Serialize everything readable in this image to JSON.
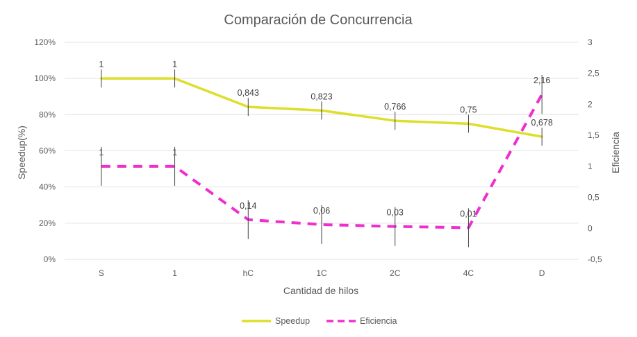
{
  "chart_data": {
    "type": "line",
    "title": "Comparación de Concurrencia",
    "xlabel": "Cantidad de hilos",
    "ylabel": "Speedup(%)",
    "y2label": "Eficiencia",
    "categories": [
      "S",
      "1",
      "hC",
      "1C",
      "2C",
      "4C",
      "D"
    ],
    "ylim": [
      0,
      1.2
    ],
    "y_ticks": [
      "0%",
      "20%",
      "40%",
      "60%",
      "80%",
      "100%",
      "120%"
    ],
    "y2lim": [
      -0.5,
      3
    ],
    "y2_ticks": [
      "-0,5",
      "0",
      "0,5",
      "1",
      "1,5",
      "2",
      "2,5",
      "3"
    ],
    "grid": true,
    "legend_position": "bottom",
    "series": [
      {
        "name": "Speedup",
        "axis": "left",
        "style": "solid",
        "color": "#dede2c",
        "values": [
          1,
          1,
          0.843,
          0.823,
          0.766,
          0.75,
          0.678
        ],
        "labels": [
          "1",
          "1",
          "0,843",
          "0,823",
          "0,766",
          "0,75",
          "0,678"
        ]
      },
      {
        "name": "Eficiencia",
        "axis": "right",
        "style": "dashed",
        "color": "#ee2fce",
        "values": [
          1,
          1,
          0.14,
          0.06,
          0.03,
          0.01,
          2.16
        ],
        "labels": [
          "1",
          "1",
          "0,14",
          "0,06",
          "0,03",
          "0,01",
          "2,16"
        ]
      }
    ]
  }
}
